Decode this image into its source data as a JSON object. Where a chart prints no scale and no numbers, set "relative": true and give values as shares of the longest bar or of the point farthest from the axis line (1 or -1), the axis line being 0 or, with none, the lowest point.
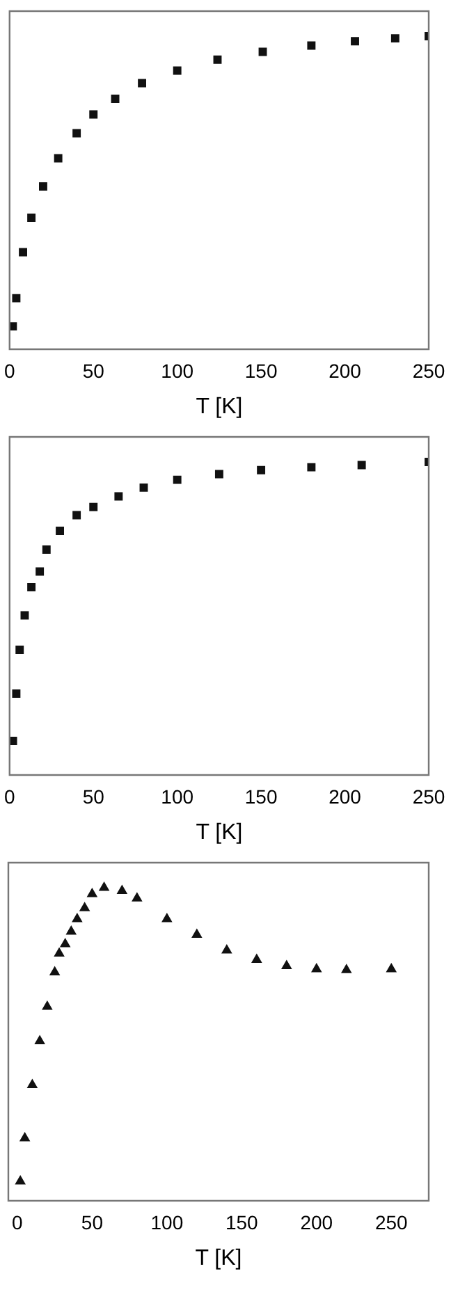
{
  "chart_data": [
    {
      "type": "scatter",
      "relative": true,
      "xlabel": "T [K]",
      "xlim": [
        0,
        250
      ],
      "xticks": [
        0,
        50,
        100,
        150,
        200,
        250
      ],
      "marker": "square",
      "grid": false,
      "legend": false,
      "tick_labels": "x",
      "x": [
        1.9,
        4,
        8,
        13,
        20,
        29,
        40,
        50,
        63,
        79,
        100,
        124,
        151,
        180,
        206,
        230,
        250
      ],
      "series": [
        {
          "color": "#111111",
          "values": [
            0.073,
            0.163,
            0.31,
            0.42,
            0.52,
            0.61,
            0.69,
            0.75,
            0.8,
            0.85,
            0.89,
            0.925,
            0.95,
            0.97,
            0.984,
            0.993,
            1.0
          ]
        }
      ]
    },
    {
      "type": "scatter",
      "relative": true,
      "xlabel": "T [K]",
      "xlim": [
        0,
        250
      ],
      "xticks": [
        0,
        50,
        100,
        150,
        200,
        250
      ],
      "marker": "square",
      "grid": false,
      "legend": false,
      "tick_labels": "x",
      "x": [
        2,
        4,
        6,
        9,
        13,
        18,
        22,
        30,
        40,
        50,
        65,
        80,
        100,
        125,
        150,
        180,
        210,
        250
      ],
      "series": [
        {
          "color": "#111111",
          "values": [
            0.109,
            0.26,
            0.4,
            0.51,
            0.6,
            0.65,
            0.72,
            0.78,
            0.83,
            0.856,
            0.89,
            0.918,
            0.943,
            0.961,
            0.974,
            0.983,
            0.99,
            1.0
          ]
        }
      ]
    },
    {
      "type": "scatter",
      "relative": true,
      "xlabel": "T [K]",
      "xlim": [
        -6,
        275
      ],
      "xticks": [
        0,
        50,
        100,
        150,
        200,
        250
      ],
      "marker": "triangle",
      "grid": false,
      "legend": false,
      "tick_labels": "x",
      "x": [
        2,
        5,
        10,
        15,
        20,
        25,
        28,
        32,
        36,
        40,
        45,
        50,
        58,
        70,
        80,
        100,
        120,
        140,
        160,
        180,
        200,
        220,
        250
      ],
      "series": [
        {
          "color": "#111111",
          "values": [
            0.062,
            0.2,
            0.37,
            0.51,
            0.62,
            0.73,
            0.79,
            0.82,
            0.86,
            0.9,
            0.935,
            0.98,
            1.0,
            0.99,
            0.966,
            0.9,
            0.85,
            0.8,
            0.77,
            0.75,
            0.74,
            0.737,
            0.74
          ]
        }
      ]
    }
  ]
}
